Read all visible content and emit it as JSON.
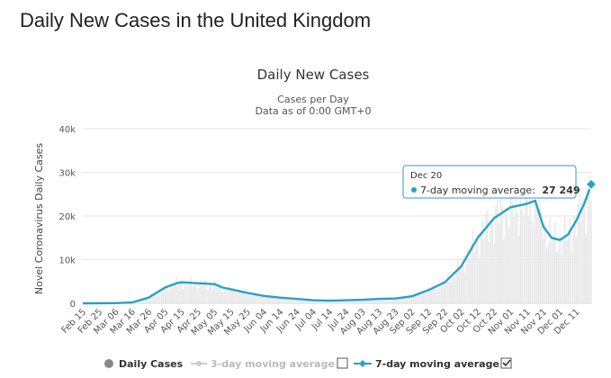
{
  "page": {
    "title": "Daily New Cases in the United Kingdom"
  },
  "chart_data": {
    "type": "line",
    "title": "Daily New Cases",
    "subtitle": [
      "Cases per Day",
      "Data as of 0:00 GMT+0"
    ],
    "ylabel": "Novel Coronavirus Daily Cases",
    "xlabel": "",
    "ylim": [
      0,
      40000
    ],
    "yticks": [
      0,
      10000,
      20000,
      30000,
      40000
    ],
    "ytick_labels": [
      "0",
      "10k",
      "20k",
      "30k",
      "40k"
    ],
    "x_start": "2020-02-15",
    "x_end": "2020-12-20",
    "xtick_labels": [
      "Feb 15",
      "Feb 25",
      "Mar 06",
      "Mar 16",
      "Mar 26",
      "Apr 05",
      "Apr 15",
      "Apr 25",
      "May 05",
      "May 15",
      "May 25",
      "Jun 04",
      "Jun 14",
      "Jun 24",
      "Jul 04",
      "Jul 14",
      "Jul 24",
      "Aug 03",
      "Aug 13",
      "Aug 23",
      "Sep 02",
      "Sep 12",
      "Sep 22",
      "Oct 02",
      "Oct 12",
      "Oct 22",
      "Nov 01",
      "Nov 11",
      "Nov 21",
      "Dec 01",
      "Dec 11"
    ],
    "grid": true,
    "legend_position": "bottom",
    "series": [
      {
        "name": "7-day moving average",
        "color": "#2aa0c7",
        "points": [
          [
            "2020-02-15",
            0
          ],
          [
            "2020-03-06",
            50
          ],
          [
            "2020-03-16",
            200
          ],
          [
            "2020-03-26",
            1300
          ],
          [
            "2020-04-05",
            3600
          ],
          [
            "2020-04-12",
            4600
          ],
          [
            "2020-04-15",
            4800
          ],
          [
            "2020-04-25",
            4600
          ],
          [
            "2020-05-05",
            4400
          ],
          [
            "2020-05-10",
            3600
          ],
          [
            "2020-05-20",
            2800
          ],
          [
            "2020-05-25",
            2400
          ],
          [
            "2020-06-04",
            1700
          ],
          [
            "2020-06-14",
            1300
          ],
          [
            "2020-06-24",
            1000
          ],
          [
            "2020-07-04",
            700
          ],
          [
            "2020-07-14",
            600
          ],
          [
            "2020-07-24",
            700
          ],
          [
            "2020-08-03",
            800
          ],
          [
            "2020-08-13",
            1000
          ],
          [
            "2020-08-23",
            1100
          ],
          [
            "2020-09-02",
            1600
          ],
          [
            "2020-09-12",
            3000
          ],
          [
            "2020-09-22",
            4800
          ],
          [
            "2020-10-02",
            8500
          ],
          [
            "2020-10-12",
            15000
          ],
          [
            "2020-10-22",
            19500
          ],
          [
            "2020-11-01",
            22000
          ],
          [
            "2020-11-11",
            22800
          ],
          [
            "2020-11-16",
            23500
          ],
          [
            "2020-11-21",
            17500
          ],
          [
            "2020-11-26",
            15000
          ],
          [
            "2020-12-01",
            14500
          ],
          [
            "2020-12-06",
            15800
          ],
          [
            "2020-12-11",
            19000
          ],
          [
            "2020-12-16",
            23000
          ],
          [
            "2020-12-20",
            27249
          ]
        ]
      }
    ],
    "tooltip": {
      "date": "Dec 20",
      "label": "7-day moving average:",
      "value": "27 249"
    },
    "legend": [
      {
        "label": "Daily Cases",
        "color": "#888888",
        "active": true
      },
      {
        "label": "3-day moving average",
        "color": "#cccccc",
        "active": false
      },
      {
        "label": "7-day moving average",
        "color": "#2aa0c7",
        "active": true
      }
    ],
    "bar_color": "#e8e8e8",
    "bar_stroke": "#d0d0d0"
  }
}
